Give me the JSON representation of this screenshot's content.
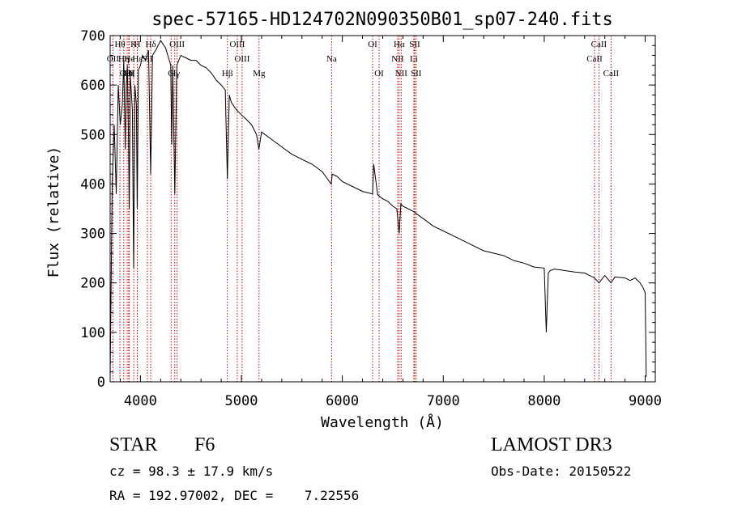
{
  "chart_data": {
    "type": "line",
    "title": "spec-57165-HD124702N090350B01_sp07-240.fits",
    "xlabel": "Wavelength (Å)",
    "ylabel": "Flux (relative)",
    "xlim": [
      3700,
      9100
    ],
    "ylim": [
      0,
      700
    ],
    "xticks": [
      4000,
      5000,
      6000,
      7000,
      8000,
      9000
    ],
    "yticks": [
      0,
      100,
      200,
      300,
      400,
      500,
      600,
      700
    ],
    "xtick_labels": [
      "4000",
      "5000",
      "6000",
      "7000",
      "8000",
      "9000"
    ],
    "ytick_labels": [
      "0",
      "100",
      "200",
      "300",
      "400",
      "500",
      "600",
      "700"
    ],
    "line_color": "#000000",
    "marker_color": "#cc0000",
    "spectrum": {
      "x": [
        3700,
        3720,
        3740,
        3760,
        3780,
        3800,
        3820,
        3835,
        3850,
        3860,
        3870,
        3880,
        3889,
        3900,
        3920,
        3933,
        3945,
        3960,
        3968,
        3980,
        4000,
        4020,
        4050,
        4080,
        4101,
        4120,
        4150,
        4200,
        4250,
        4300,
        4310,
        4320,
        4340,
        4360,
        4400,
        4450,
        4500,
        4550,
        4600,
        4650,
        4700,
        4750,
        4800,
        4840,
        4861,
        4880,
        4900,
        4950,
        5000,
        5050,
        5100,
        5150,
        5173,
        5200,
        5300,
        5400,
        5500,
        5600,
        5700,
        5800,
        5890,
        5900,
        5950,
        6000,
        6100,
        6200,
        6300,
        6310,
        6350,
        6400,
        6450,
        6500,
        6540,
        6563,
        6580,
        6600,
        6650,
        6700,
        6800,
        6900,
        7000,
        7100,
        7200,
        7300,
        7400,
        7500,
        7600,
        7700,
        7800,
        7900,
        8000,
        8020,
        8040,
        8060,
        8100,
        8200,
        8300,
        8400,
        8498,
        8542,
        8600,
        8662,
        8700,
        8800,
        8850,
        8900,
        8950,
        8980,
        9000,
        9010
      ],
      "y": [
        10,
        400,
        520,
        380,
        600,
        520,
        560,
        650,
        470,
        600,
        640,
        520,
        350,
        620,
        550,
        230,
        600,
        560,
        350,
        630,
        640,
        660,
        650,
        670,
        420,
        660,
        670,
        690,
        675,
        640,
        480,
        640,
        380,
        640,
        660,
        655,
        650,
        650,
        640,
        635,
        625,
        610,
        600,
        590,
        410,
        580,
        565,
        550,
        540,
        530,
        520,
        500,
        470,
        505,
        490,
        475,
        460,
        450,
        440,
        425,
        400,
        420,
        415,
        405,
        395,
        385,
        380,
        440,
        378,
        370,
        365,
        355,
        350,
        300,
        360,
        355,
        350,
        345,
        330,
        315,
        305,
        295,
        285,
        275,
        265,
        260,
        255,
        245,
        240,
        232,
        230,
        100,
        220,
        225,
        228,
        225,
        222,
        220,
        210,
        200,
        215,
        200,
        212,
        210,
        205,
        210,
        200,
        190,
        180,
        10
      ]
    },
    "lines": [
      {
        "label": "Hθ",
        "x": 3797,
        "row": 0
      },
      {
        "label": "K",
        "x": 3934,
        "row": 0
      },
      {
        "label": "H",
        "x": 3969,
        "row": 0
      },
      {
        "label": "Hδ",
        "x": 4102,
        "row": 0
      },
      {
        "label": "OIII",
        "x": 4363,
        "row": 0
      },
      {
        "label": "OIII",
        "x": 4959,
        "row": 0
      },
      {
        "label": "OI",
        "x": 6300,
        "row": 0
      },
      {
        "label": "Hα",
        "x": 6563,
        "row": 0
      },
      {
        "label": "SII",
        "x": 6717,
        "row": 0
      },
      {
        "label": "CaII",
        "x": 8542,
        "row": 0
      },
      {
        "label": "OII",
        "x": 3727,
        "row": 1
      },
      {
        "label": "Hη",
        "x": 3835,
        "row": 1
      },
      {
        "label": "He",
        "x": 3889,
        "row": 1
      },
      {
        "label": "Hε",
        "x": 3970,
        "row": 1
      },
      {
        "label": "SII",
        "x": 4069,
        "row": 1
      },
      {
        "label": "OIII",
        "x": 5007,
        "row": 1
      },
      {
        "label": "Na",
        "x": 5893,
        "row": 1
      },
      {
        "label": "NII",
        "x": 6548,
        "row": 1
      },
      {
        "label": "Li",
        "x": 6708,
        "row": 1
      },
      {
        "label": "CaII",
        "x": 8498,
        "row": 1
      },
      {
        "label": "OIII",
        "x": 3869,
        "row": 2
      },
      {
        "label": "Hζ",
        "x": 3889,
        "row": 2
      },
      {
        "label": "CN",
        "x": 3884,
        "row": 2
      },
      {
        "label": "Hγ",
        "x": 4340,
        "row": 2
      },
      {
        "label": "G",
        "x": 4304,
        "row": 2
      },
      {
        "label": "Hβ",
        "x": 4861,
        "row": 2
      },
      {
        "label": "Mg",
        "x": 5175,
        "row": 2
      },
      {
        "label": "OI",
        "x": 6364,
        "row": 2
      },
      {
        "label": "NII",
        "x": 6583,
        "row": 2
      },
      {
        "label": "SII",
        "x": 6731,
        "row": 2
      },
      {
        "label": "CaII",
        "x": 8662,
        "row": 2
      }
    ]
  },
  "info": {
    "object_class": "STAR",
    "subclass": "F6",
    "survey": "LAMOST DR3",
    "cz": "cz = 98.3 ± 17.9 km/s",
    "obs_date": "Obs-Date: 20150522",
    "coords": "RA = 192.97002, DEC =    7.22556"
  }
}
